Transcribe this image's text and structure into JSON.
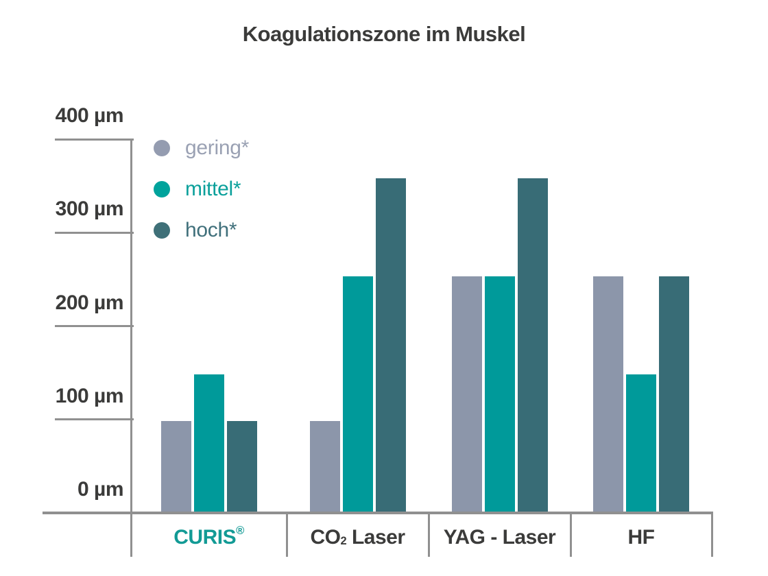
{
  "title": "Koagulationszone im Muskel",
  "colors": {
    "background": "#ffffff",
    "title_text": "#3b3b3a",
    "axis_gray": "#909090",
    "ytick_text": "#3b3b3a",
    "category_text": "#3b3b3a",
    "curis_brand_teal": "#129a95",
    "gering_gray_blue": "#8c96aa",
    "mittel_teal": "#009a9a",
    "hoch_dark_teal": "#386c76"
  },
  "legend": {
    "items": [
      {
        "id": "gering",
        "label": "gering*"
      },
      {
        "id": "mittel",
        "label": "mittel*"
      },
      {
        "id": "hoch",
        "label": "hoch*"
      }
    ]
  },
  "chart_data": {
    "type": "bar",
    "title": "Koagulationszone im Muskel",
    "unit": "µm",
    "categories": [
      "CURIS®",
      "CO₂ Laser",
      "YAG - Laser",
      "HF"
    ],
    "category_display": [
      {
        "id": "curis",
        "label": "CURIS®",
        "parts": [
          {
            "t": "CURIS"
          },
          {
            "t": "®",
            "sup": true
          }
        ],
        "label_color": "#129a95"
      },
      {
        "id": "co2-laser",
        "label": "CO₂ Laser",
        "parts": [
          {
            "t": "CO"
          },
          {
            "t": "2",
            "sub": true
          },
          {
            "t": " Laser"
          }
        ],
        "label_color": "#3b3b3a"
      },
      {
        "id": "yag-laser",
        "label": "YAG - Laser",
        "parts": [
          {
            "t": "YAG - Laser"
          }
        ],
        "label_color": "#3b3b3a"
      },
      {
        "id": "hf",
        "label": "HF",
        "parts": [
          {
            "t": "HF"
          }
        ],
        "label_color": "#3b3b3a"
      }
    ],
    "series": [
      {
        "id": "gering",
        "name": "gering*",
        "color": "#8c96aa",
        "dot_color": "#949cb0",
        "text_color": "#9aa1b3",
        "values": [
          100,
          100,
          255,
          255
        ]
      },
      {
        "id": "mittel",
        "name": "mittel*",
        "color": "#009a9a",
        "dot_color": "#00a39c",
        "text_color": "#0aa09b",
        "values": [
          150,
          255,
          255,
          150
        ]
      },
      {
        "id": "hoch",
        "name": "hoch*",
        "color": "#386c76",
        "dot_color": "#3f7078",
        "text_color": "#40707b",
        "values": [
          100,
          360,
          360,
          255
        ]
      }
    ],
    "yticks": [
      {
        "value": 400,
        "label": "400 µm"
      },
      {
        "value": 300,
        "label": "300 µm"
      },
      {
        "value": 200,
        "label": "200 µm"
      },
      {
        "value": 100,
        "label": "100 µm"
      },
      {
        "value": 0,
        "label": "0 µm"
      }
    ],
    "ylim": [
      0,
      400
    ],
    "grid": "left-bracket-ticks-only",
    "legend_position": "upper-left-inside"
  }
}
